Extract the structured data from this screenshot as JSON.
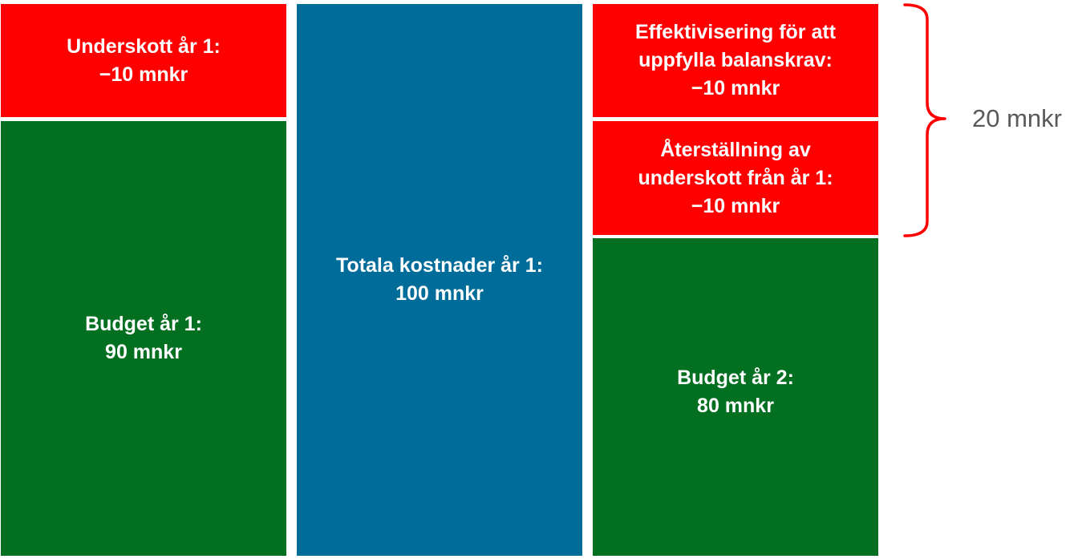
{
  "blocks": {
    "deficit_year1": {
      "lines": [
        "Underskott år 1:",
        "−10 mnkr"
      ],
      "color": "#ff0000"
    },
    "budget_year1": {
      "lines": [
        "Budget år 1:",
        "90 mnkr"
      ],
      "color": "#036f21"
    },
    "total_costs": {
      "lines": [
        "Totala kostnader år 1:",
        "100 mnkr"
      ],
      "color": "#006c99"
    },
    "efficiency": {
      "lines": [
        "Effektivisering för att",
        "uppfylla balanskrav:",
        "−10 mnkr"
      ],
      "color": "#ff0000"
    },
    "restoration": {
      "lines": [
        "Återställning av",
        "underskott från år 1:",
        "−10 mnkr"
      ],
      "color": "#ff0000"
    },
    "budget_year2": {
      "lines": [
        "Budget år 2:",
        "80 mnkr"
      ],
      "color": "#036f21"
    }
  },
  "brace": {
    "label": "20 mnkr",
    "color": "#ff0000"
  }
}
